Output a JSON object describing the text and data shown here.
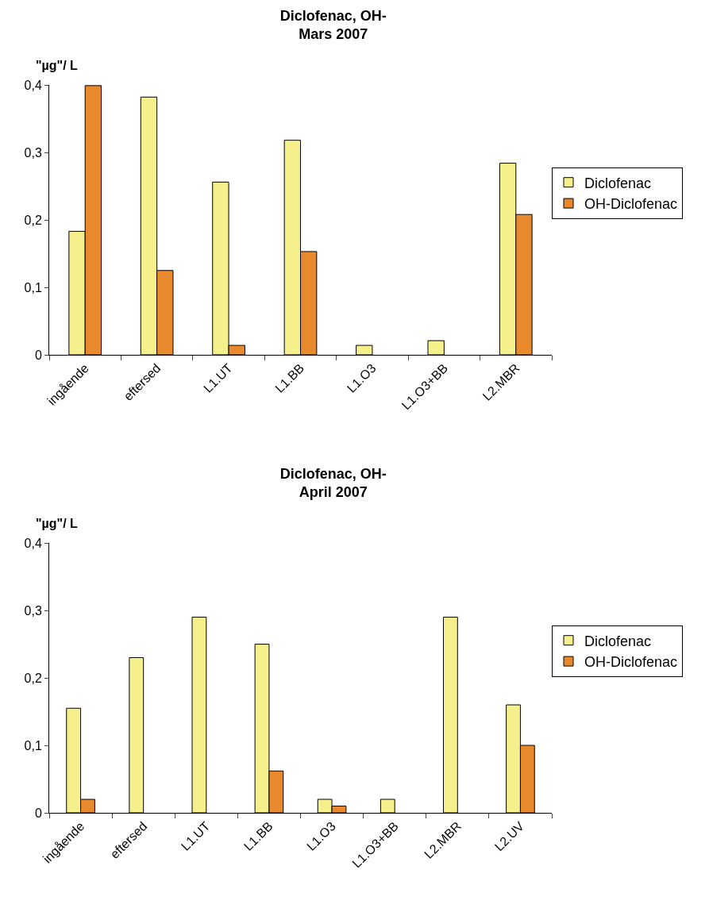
{
  "chart_data": [
    {
      "type": "bar",
      "title": "Diclofenac, OH-\nMars 2007",
      "ylabel": "\"µg\"/ L",
      "categories": [
        "ingående",
        "eftersed",
        "L1.UT",
        "L1.BB",
        "L1.O3",
        "L1.O3+BB",
        "L2.MBR"
      ],
      "series": [
        {
          "name": "Diclofenac",
          "color": "#f5f08c",
          "values": [
            0.183,
            0.382,
            0.256,
            0.318,
            0.014,
            0.021,
            0.284
          ]
        },
        {
          "name": "OH-Diclofenac",
          "color": "#e8892e",
          "values": [
            0.399,
            0.125,
            0.014,
            0.153,
            null,
            null,
            0.208
          ]
        }
      ],
      "ylim": [
        0,
        0.4
      ],
      "yticks": [
        {
          "value": 0,
          "label": "0"
        },
        {
          "value": 0.1,
          "label": "0,1"
        },
        {
          "value": 0.2,
          "label": "0,2"
        },
        {
          "value": 0.3,
          "label": "0,3"
        },
        {
          "value": 0.4,
          "label": "0,4"
        }
      ],
      "grid": false,
      "legend": "right"
    },
    {
      "type": "bar",
      "title": "Diclofenac, OH-\nApril 2007",
      "ylabel": "\"µg\"/ L",
      "categories": [
        "ingående",
        "eftersed",
        "L1.UT",
        "L1.BB",
        "L1.O3",
        "L1.O3+BB",
        "L2.MBR",
        "L2.UV"
      ],
      "series": [
        {
          "name": "Diclofenac",
          "color": "#f5f08c",
          "values": [
            0.155,
            0.23,
            0.29,
            0.25,
            0.02,
            0.02,
            0.29,
            0.16
          ]
        },
        {
          "name": "OH-Diclofenac",
          "color": "#e8892e",
          "values": [
            0.02,
            null,
            null,
            0.062,
            0.01,
            null,
            null,
            0.1
          ]
        }
      ],
      "ylim": [
        0,
        0.4
      ],
      "yticks": [
        {
          "value": 0,
          "label": "0"
        },
        {
          "value": 0.1,
          "label": "0,1"
        },
        {
          "value": 0.2,
          "label": "0,2"
        },
        {
          "value": 0.3,
          "label": "0,3"
        },
        {
          "value": 0.4,
          "label": "0,4"
        }
      ],
      "grid": false,
      "legend": "right"
    }
  ]
}
